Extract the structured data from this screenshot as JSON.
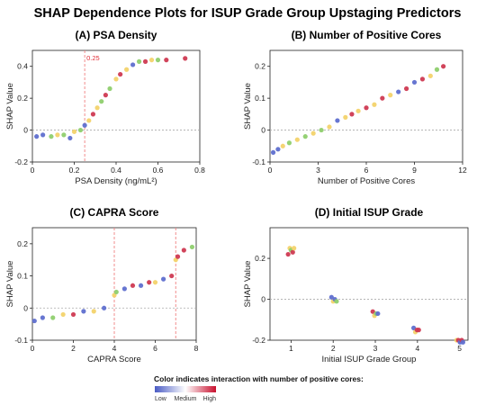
{
  "figure_title": "SHAP Dependence Plots for ISUP Grade Group Upstaging Predictors",
  "palette": {
    "low": "#5f6fcf",
    "yellow": "#f3d36b",
    "green": "#8fcf6e",
    "high": "#cf3a52",
    "reference_line": "#f08080",
    "zero_line": "#aaaaaa"
  },
  "legend": {
    "title": "Color indicates interaction with number of positive cores:",
    "labels": [
      "Low",
      "Medium",
      "High"
    ],
    "colors": [
      "#4a5bc4",
      "#ffffff",
      "#c8102e"
    ]
  },
  "chart_data": [
    {
      "id": "A",
      "type": "scatter",
      "title": "(A) PSA Density",
      "xlabel": "PSA Density (ng/mL²)",
      "ylabel": "SHAP Value",
      "xlim": [
        0,
        0.8
      ],
      "ylim": [
        -0.2,
        0.5
      ],
      "xticks": [
        0,
        0.2,
        0.4,
        0.6,
        0.8
      ],
      "xtick_labels": [
        "0",
        "0.2",
        "0.4",
        "0.6",
        "0.8"
      ],
      "yticks": [
        -0.2,
        0,
        0.2,
        0.4
      ],
      "ytick_labels": [
        "-0.2",
        "0",
        "0.2",
        "0.4"
      ],
      "grid": false,
      "zero_line": true,
      "vlines": [
        {
          "x": 0.25,
          "label": "0.25"
        }
      ],
      "points": [
        {
          "x": 0.02,
          "y": -0.04,
          "c": "low"
        },
        {
          "x": 0.05,
          "y": -0.03,
          "c": "low"
        },
        {
          "x": 0.09,
          "y": -0.04,
          "c": "green"
        },
        {
          "x": 0.12,
          "y": -0.03,
          "c": "yellow"
        },
        {
          "x": 0.15,
          "y": -0.03,
          "c": "green"
        },
        {
          "x": 0.18,
          "y": -0.05,
          "c": "low"
        },
        {
          "x": 0.2,
          "y": -0.01,
          "c": "yellow"
        },
        {
          "x": 0.23,
          "y": 0.0,
          "c": "green"
        },
        {
          "x": 0.25,
          "y": 0.03,
          "c": "low"
        },
        {
          "x": 0.27,
          "y": 0.06,
          "c": "yellow"
        },
        {
          "x": 0.29,
          "y": 0.1,
          "c": "high"
        },
        {
          "x": 0.31,
          "y": 0.14,
          "c": "yellow"
        },
        {
          "x": 0.33,
          "y": 0.18,
          "c": "green"
        },
        {
          "x": 0.35,
          "y": 0.22,
          "c": "high"
        },
        {
          "x": 0.37,
          "y": 0.26,
          "c": "green"
        },
        {
          "x": 0.4,
          "y": 0.32,
          "c": "yellow"
        },
        {
          "x": 0.42,
          "y": 0.35,
          "c": "high"
        },
        {
          "x": 0.45,
          "y": 0.38,
          "c": "yellow"
        },
        {
          "x": 0.48,
          "y": 0.41,
          "c": "low"
        },
        {
          "x": 0.51,
          "y": 0.43,
          "c": "green"
        },
        {
          "x": 0.54,
          "y": 0.43,
          "c": "high"
        },
        {
          "x": 0.57,
          "y": 0.44,
          "c": "yellow"
        },
        {
          "x": 0.6,
          "y": 0.44,
          "c": "green"
        },
        {
          "x": 0.64,
          "y": 0.44,
          "c": "high"
        },
        {
          "x": 0.73,
          "y": 0.45,
          "c": "high"
        }
      ]
    },
    {
      "id": "B",
      "type": "scatter",
      "title": "(B) Number of Positive Cores",
      "xlabel": "Number of Positive Cores",
      "ylabel": "SHAP Value",
      "xlim": [
        0,
        12
      ],
      "ylim": [
        -0.1,
        0.25
      ],
      "xticks": [
        0,
        3,
        6,
        9,
        12
      ],
      "xtick_labels": [
        "0",
        "3",
        "6",
        "9",
        "12"
      ],
      "yticks": [
        -0.1,
        0,
        0.1,
        0.2
      ],
      "ytick_labels": [
        "-0.1",
        "0",
        "0.1",
        "0.2"
      ],
      "grid": false,
      "zero_line": true,
      "vlines": [],
      "points": [
        {
          "x": 0.2,
          "y": -0.07,
          "c": "low"
        },
        {
          "x": 0.5,
          "y": -0.06,
          "c": "low"
        },
        {
          "x": 0.8,
          "y": -0.05,
          "c": "yellow"
        },
        {
          "x": 1.2,
          "y": -0.04,
          "c": "green"
        },
        {
          "x": 1.7,
          "y": -0.03,
          "c": "yellow"
        },
        {
          "x": 2.2,
          "y": -0.02,
          "c": "green"
        },
        {
          "x": 2.7,
          "y": -0.01,
          "c": "yellow"
        },
        {
          "x": 3.2,
          "y": 0.0,
          "c": "green"
        },
        {
          "x": 3.7,
          "y": 0.01,
          "c": "yellow"
        },
        {
          "x": 4.2,
          "y": 0.03,
          "c": "low"
        },
        {
          "x": 4.7,
          "y": 0.04,
          "c": "yellow"
        },
        {
          "x": 5.1,
          "y": 0.05,
          "c": "high"
        },
        {
          "x": 5.5,
          "y": 0.06,
          "c": "yellow"
        },
        {
          "x": 6.0,
          "y": 0.07,
          "c": "high"
        },
        {
          "x": 6.5,
          "y": 0.08,
          "c": "yellow"
        },
        {
          "x": 7.0,
          "y": 0.1,
          "c": "high"
        },
        {
          "x": 7.5,
          "y": 0.11,
          "c": "yellow"
        },
        {
          "x": 8.0,
          "y": 0.12,
          "c": "low"
        },
        {
          "x": 8.5,
          "y": 0.13,
          "c": "high"
        },
        {
          "x": 9.0,
          "y": 0.15,
          "c": "low"
        },
        {
          "x": 9.5,
          "y": 0.16,
          "c": "high"
        },
        {
          "x": 10.0,
          "y": 0.17,
          "c": "yellow"
        },
        {
          "x": 10.4,
          "y": 0.19,
          "c": "green"
        },
        {
          "x": 10.8,
          "y": 0.2,
          "c": "high"
        }
      ]
    },
    {
      "id": "C",
      "type": "scatter",
      "title": "(C) CAPRA Score",
      "xlabel": "CAPRA Score",
      "ylabel": "SHAP Value",
      "xlim": [
        0,
        8
      ],
      "ylim": [
        -0.1,
        0.25
      ],
      "xticks": [
        0,
        2,
        4,
        6,
        8
      ],
      "xtick_labels": [
        "0",
        "2",
        "4",
        "6",
        "8"
      ],
      "yticks": [
        -0.1,
        0,
        0.1,
        0.2
      ],
      "ytick_labels": [
        "-0.1",
        "0",
        "0.1",
        "0.2"
      ],
      "grid": false,
      "zero_line": true,
      "vlines": [
        {
          "x": 4,
          "label": ""
        },
        {
          "x": 7,
          "label": ""
        }
      ],
      "points": [
        {
          "x": 0.1,
          "y": -0.04,
          "c": "low"
        },
        {
          "x": 0.5,
          "y": -0.03,
          "c": "low"
        },
        {
          "x": 1.0,
          "y": -0.03,
          "c": "green"
        },
        {
          "x": 1.5,
          "y": -0.02,
          "c": "yellow"
        },
        {
          "x": 2.0,
          "y": -0.02,
          "c": "high"
        },
        {
          "x": 2.5,
          "y": -0.01,
          "c": "low"
        },
        {
          "x": 3.0,
          "y": -0.01,
          "c": "yellow"
        },
        {
          "x": 3.5,
          "y": 0.0,
          "c": "low"
        },
        {
          "x": 4.0,
          "y": 0.04,
          "c": "yellow"
        },
        {
          "x": 4.1,
          "y": 0.05,
          "c": "green"
        },
        {
          "x": 4.5,
          "y": 0.06,
          "c": "low"
        },
        {
          "x": 4.9,
          "y": 0.07,
          "c": "high"
        },
        {
          "x": 5.3,
          "y": 0.07,
          "c": "low"
        },
        {
          "x": 5.7,
          "y": 0.08,
          "c": "high"
        },
        {
          "x": 6.0,
          "y": 0.08,
          "c": "yellow"
        },
        {
          "x": 6.4,
          "y": 0.09,
          "c": "low"
        },
        {
          "x": 6.8,
          "y": 0.1,
          "c": "high"
        },
        {
          "x": 7.0,
          "y": 0.15,
          "c": "yellow"
        },
        {
          "x": 7.1,
          "y": 0.16,
          "c": "high"
        },
        {
          "x": 7.4,
          "y": 0.18,
          "c": "high"
        },
        {
          "x": 7.8,
          "y": 0.19,
          "c": "green"
        }
      ]
    },
    {
      "id": "D",
      "type": "scatter",
      "title": "(D) Initial ISUP Grade",
      "xlabel": "Initial ISUP Grade Group",
      "ylabel": "SHAP Value",
      "xlim": [
        0.5,
        5.2
      ],
      "ylim": [
        -0.2,
        0.35
      ],
      "xticks": [
        1,
        2,
        3,
        4,
        5
      ],
      "xtick_labels": [
        "1",
        "2",
        "3",
        "4",
        "5"
      ],
      "yticks": [
        -0.2,
        0,
        0.2
      ],
      "ytick_labels": [
        "-0.2",
        "0",
        "0.2"
      ],
      "grid": false,
      "zero_line": true,
      "vlines": [],
      "points": [
        {
          "x": 0.93,
          "y": 0.22,
          "c": "high"
        },
        {
          "x": 0.97,
          "y": 0.25,
          "c": "yellow"
        },
        {
          "x": 1.0,
          "y": 0.24,
          "c": "green"
        },
        {
          "x": 1.04,
          "y": 0.23,
          "c": "high"
        },
        {
          "x": 1.07,
          "y": 0.25,
          "c": "yellow"
        },
        {
          "x": 1.96,
          "y": 0.01,
          "c": "low"
        },
        {
          "x": 2.0,
          "y": -0.01,
          "c": "yellow"
        },
        {
          "x": 2.04,
          "y": 0.0,
          "c": "low"
        },
        {
          "x": 2.08,
          "y": -0.01,
          "c": "green"
        },
        {
          "x": 2.94,
          "y": -0.06,
          "c": "high"
        },
        {
          "x": 2.98,
          "y": -0.08,
          "c": "yellow"
        },
        {
          "x": 3.02,
          "y": -0.07,
          "c": "green"
        },
        {
          "x": 3.06,
          "y": -0.07,
          "c": "low"
        },
        {
          "x": 3.91,
          "y": -0.14,
          "c": "low"
        },
        {
          "x": 3.95,
          "y": -0.16,
          "c": "yellow"
        },
        {
          "x": 3.99,
          "y": -0.15,
          "c": "high"
        },
        {
          "x": 4.03,
          "y": -0.15,
          "c": "high"
        },
        {
          "x": 4.93,
          "y": -0.2,
          "c": "yellow"
        },
        {
          "x": 4.97,
          "y": -0.2,
          "c": "high"
        },
        {
          "x": 5.01,
          "y": -0.21,
          "c": "low"
        },
        {
          "x": 5.05,
          "y": -0.2,
          "c": "high"
        },
        {
          "x": 5.08,
          "y": -0.21,
          "c": "low"
        }
      ]
    }
  ]
}
